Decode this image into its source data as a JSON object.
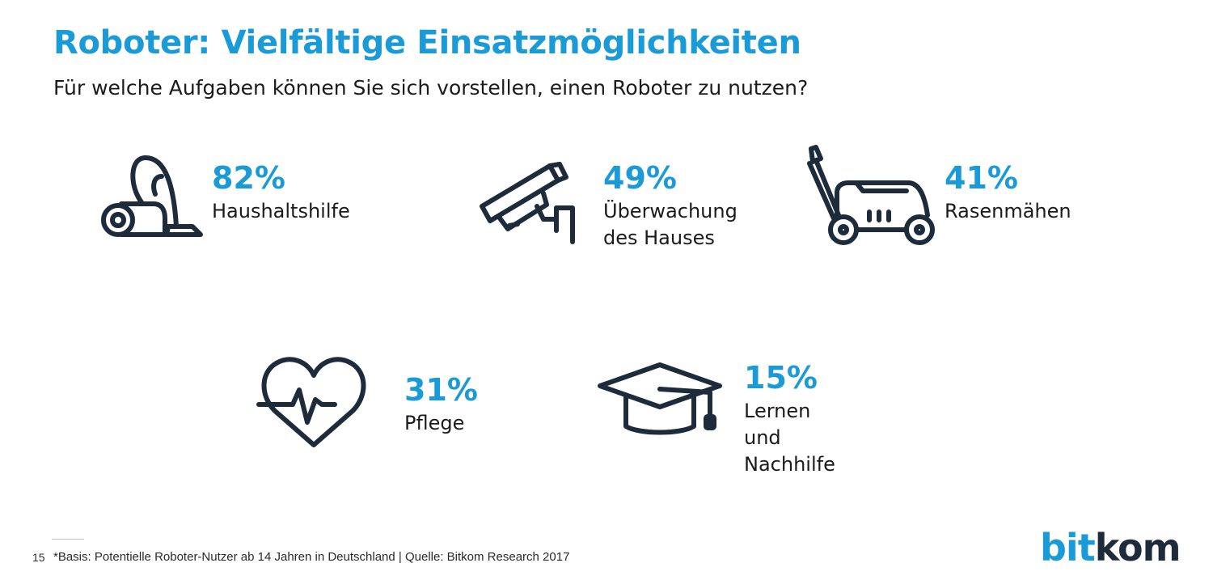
{
  "header": {
    "title": "Roboter: Vielfältige Einsatzmöglichkeiten",
    "subtitle": "Für welche Aufgaben können Sie sich vorstellen, einen Roboter zu nutzen?"
  },
  "chart_data": {
    "type": "table",
    "title": "Roboter: Vielfältige Einsatzmöglichkeiten",
    "subtitle": "Für welche Aufgaben können Sie sich vorstellen, einen Roboter zu nutzen?",
    "categories": [
      "Haushaltshilfe",
      "Überwachung des Hauses",
      "Rasenmähen",
      "Pflege",
      "Lernen und Nachhilfe"
    ],
    "values": [
      82,
      49,
      41,
      31,
      15
    ],
    "unit": "%",
    "items": [
      {
        "value": 82,
        "value_label": "82%",
        "label": "Haushaltshilfe",
        "icon": "vacuum-cleaner-icon"
      },
      {
        "value": 49,
        "value_label": "49%",
        "label": "Überwachung\ndes Hauses",
        "icon": "security-camera-icon"
      },
      {
        "value": 41,
        "value_label": "41%",
        "label": "Rasenmähen",
        "icon": "lawn-mower-icon"
      },
      {
        "value": 31,
        "value_label": "31%",
        "label": "Pflege",
        "icon": "heartbeat-icon"
      },
      {
        "value": 15,
        "value_label": "15%",
        "label": "Lernen und\nNachhilfe",
        "icon": "graduation-cap-icon"
      }
    ]
  },
  "footer": {
    "page_number": "15",
    "note": "*Basis: Potentielle Roboter-Nutzer ab 14 Jahren  in Deutschland | Quelle: Bitkom Research 2017"
  },
  "logo": {
    "part1": "bit",
    "part2": "kom"
  },
  "colors": {
    "accent": "#1a9bd7",
    "icon": "#1e2b3a",
    "text": "#1b1b1b"
  }
}
